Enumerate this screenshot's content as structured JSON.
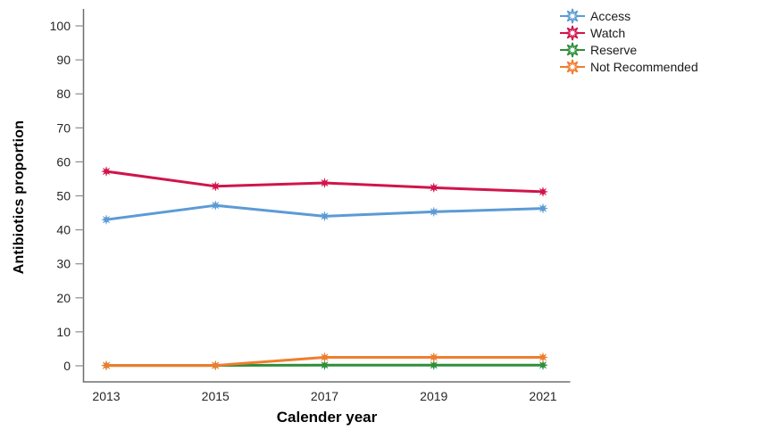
{
  "chart_data": {
    "type": "line",
    "title": "",
    "xlabel": "Calender year",
    "ylabel": "Antibiotics proportion",
    "x": [
      2013,
      2015,
      2017,
      2019,
      2021
    ],
    "x_tick_labels": [
      "2013",
      "2015",
      "2017",
      "2019",
      "2021"
    ],
    "y_ticks": [
      0,
      10,
      20,
      30,
      40,
      50,
      60,
      70,
      80,
      90,
      100
    ],
    "ylim": [
      0,
      100
    ],
    "grid": false,
    "marker": "8-point-star",
    "legend_position": "top-right",
    "series": [
      {
        "name": "Access",
        "color": "#5B9BD5",
        "values": [
          43.0,
          47.2,
          44.0,
          45.3,
          46.3
        ]
      },
      {
        "name": "Watch",
        "color": "#D0154B",
        "values": [
          57.2,
          52.8,
          53.8,
          52.4,
          51.2
        ]
      },
      {
        "name": "Reserve",
        "color": "#2F8E3B",
        "values": [
          0.1,
          0.1,
          0.2,
          0.2,
          0.2
        ]
      },
      {
        "name": "Not Recommended",
        "color": "#EF7D2E",
        "values": [
          0.1,
          0.1,
          2.5,
          2.5,
          2.5
        ]
      }
    ],
    "colors": {
      "axis": "#6E6E6E",
      "tick": "#8C8C8C",
      "tick_label": "#262626"
    }
  }
}
